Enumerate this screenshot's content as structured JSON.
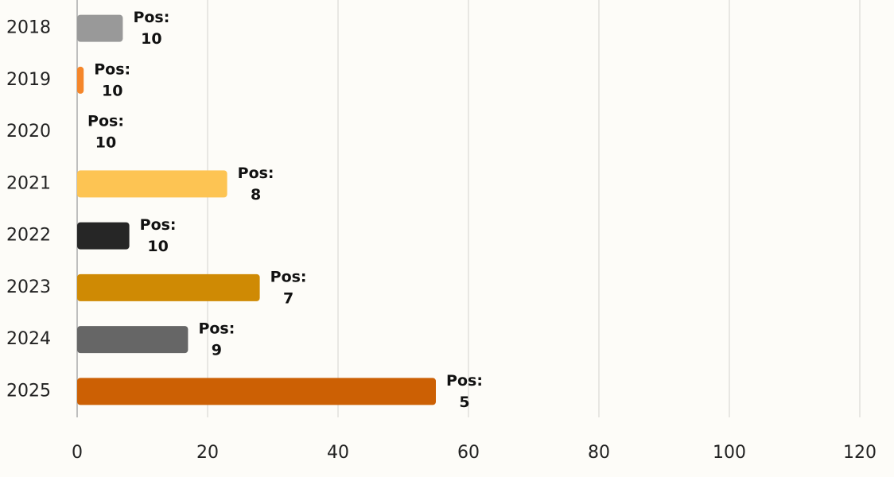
{
  "chart_data": {
    "type": "bar",
    "orientation": "horizontal",
    "categories": [
      "2018",
      "2019",
      "2020",
      "2021",
      "2022",
      "2023",
      "2024",
      "2025"
    ],
    "values": [
      7,
      1,
      0,
      23,
      8,
      28,
      17,
      55
    ],
    "colors": [
      "#999999",
      "#f5862a",
      "#999999",
      "#fdc453",
      "#262626",
      "#cf8a04",
      "#666666",
      "#cc6004"
    ],
    "annotation_prefix": "Pos:",
    "positions": [
      10,
      10,
      10,
      8,
      10,
      7,
      9,
      5
    ],
    "xlim": [
      0,
      120
    ],
    "xticks": [
      0,
      20,
      40,
      60,
      80,
      100,
      120
    ],
    "grid": true
  }
}
